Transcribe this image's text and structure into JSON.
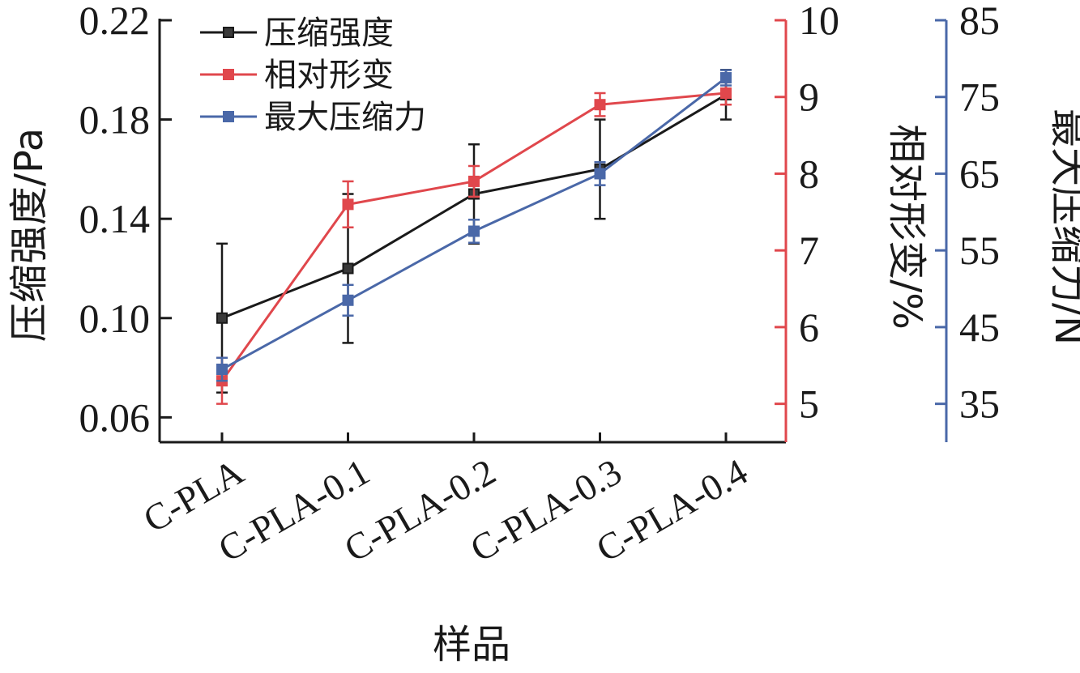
{
  "chart_data": {
    "type": "line",
    "categories": [
      "C-PLA",
      "C-PLA-0.1",
      "C-PLA-0.2",
      "C-PLA-0.3",
      "C-PLA-0.4"
    ],
    "xlabel": "样品",
    "axes": {
      "left": {
        "label": "压缩强度/Pa",
        "ylim": [
          0.05,
          0.22
        ],
        "ticks": [
          "0.06",
          "0.10",
          "0.14",
          "0.18",
          "0.22"
        ],
        "color": "#1a1a1a"
      },
      "right1": {
        "label": "相对形变/%",
        "ylim": [
          4.5,
          10
        ],
        "ticks": [
          "5",
          "6",
          "7",
          "8",
          "9",
          "10"
        ],
        "color": "#e0474c"
      },
      "right2": {
        "label": "最大压缩力/N",
        "ylim": [
          30,
          85
        ],
        "ticks": [
          "35",
          "45",
          "55",
          "65",
          "75",
          "85"
        ],
        "color": "#4a68a8"
      }
    },
    "series": [
      {
        "name": "压缩强度",
        "axis": "left",
        "color": "#1a1a1a",
        "values": [
          0.1,
          0.12,
          0.15,
          0.16,
          0.19
        ],
        "errors": [
          0.03,
          0.03,
          0.02,
          0.02,
          0.01
        ]
      },
      {
        "name": "相对形变",
        "axis": "right1",
        "color": "#e0474c",
        "values": [
          5.3,
          7.6,
          7.9,
          8.9,
          9.05
        ],
        "errors": [
          0.3,
          0.3,
          0.2,
          0.15,
          0.15
        ]
      },
      {
        "name": "最大压缩力",
        "axis": "right2",
        "color": "#4a68a8",
        "values": [
          39.5,
          48.5,
          57.5,
          65.0,
          77.5
        ],
        "errors": [
          1.5,
          2.0,
          1.5,
          1.5,
          1.0
        ]
      }
    ],
    "legend": {
      "position": "top-left"
    },
    "grid": false
  }
}
